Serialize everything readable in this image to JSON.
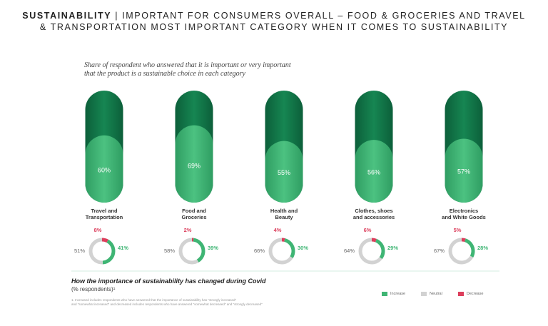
{
  "header": {
    "title_bold": "SUSTAINABILITY",
    "title_line1": " | IMPORTANT FOR CONSUMERS OVERALL – FOOD & GROCERIES AND TRAVEL",
    "title_line2": "& TRANSPORTATION MOST IMPORTANT CATEGORY WHEN IT COMES TO SUSTAINABILITY"
  },
  "subtitle": {
    "line1": "Share of respondent who answered that it is important or very important",
    "line2": "that the product is a sustainable choice in each category"
  },
  "colors": {
    "dark_green": "#11754a",
    "light_green": "#3fb574",
    "increase": "#3fb574",
    "neutral": "#d2d2d2",
    "decrease": "#dc3e5c"
  },
  "chart_data": [
    {
      "type": "bar",
      "title": "Share of respondent who answered that it is important or very important that the product is a sustainable choice in each category",
      "categories": [
        "Travel and Transportation",
        "Food and Groceries",
        "Health and Beauty",
        "Clothes, shoes and accessories",
        "Electronics and White Goods"
      ],
      "values": [
        60,
        69,
        55,
        56,
        57
      ],
      "value_labels": [
        "60%",
        "69%",
        "55%",
        "56%",
        "57%"
      ],
      "ylim": [
        0,
        100
      ]
    },
    {
      "type": "pie",
      "title": "How the importance of sustainability has changed during Covid",
      "categories": [
        "Travel and Transportation",
        "Food and Groceries",
        "Health and Beauty",
        "Clothes, shoes and accessories",
        "Electronics and White Goods"
      ],
      "series": [
        {
          "name": "Increase",
          "values": [
            41,
            39,
            30,
            29,
            28
          ],
          "labels": [
            "41%",
            "39%",
            "30%",
            "29%",
            "28%"
          ]
        },
        {
          "name": "Neutral",
          "values": [
            51,
            58,
            66,
            64,
            67
          ],
          "labels": [
            "51%",
            "58%",
            "66%",
            "64%",
            "67%"
          ]
        },
        {
          "name": "Decrease",
          "values": [
            8,
            2,
            4,
            6,
            5
          ],
          "labels": [
            "8%",
            "2%",
            "4%",
            "6%",
            "5%"
          ]
        }
      ]
    }
  ],
  "category_labels": [
    [
      "Travel and",
      "Transportation"
    ],
    [
      "Food and",
      "Groceries"
    ],
    [
      "Health and",
      "Beauty"
    ],
    [
      "Clothes, shoes",
      "and accessories"
    ],
    [
      "Electronics",
      "and White Goods"
    ]
  ],
  "bottom": {
    "title": "How the importance of sustainability has changed during Covid",
    "subtitle": "(% respondents)¹",
    "footnote_line1": "1. Increased includes respondents who have answered that the importance of sustainability has \"strongly increased\"",
    "footnote_line2": "and \"somewhat increased\" and decreased includes respondents who have answered \"somewhat decreased\" and \"strongly decreased\""
  },
  "legend": {
    "increase": "Increase",
    "neutral": "Neutral",
    "decrease": "Decrease"
  }
}
